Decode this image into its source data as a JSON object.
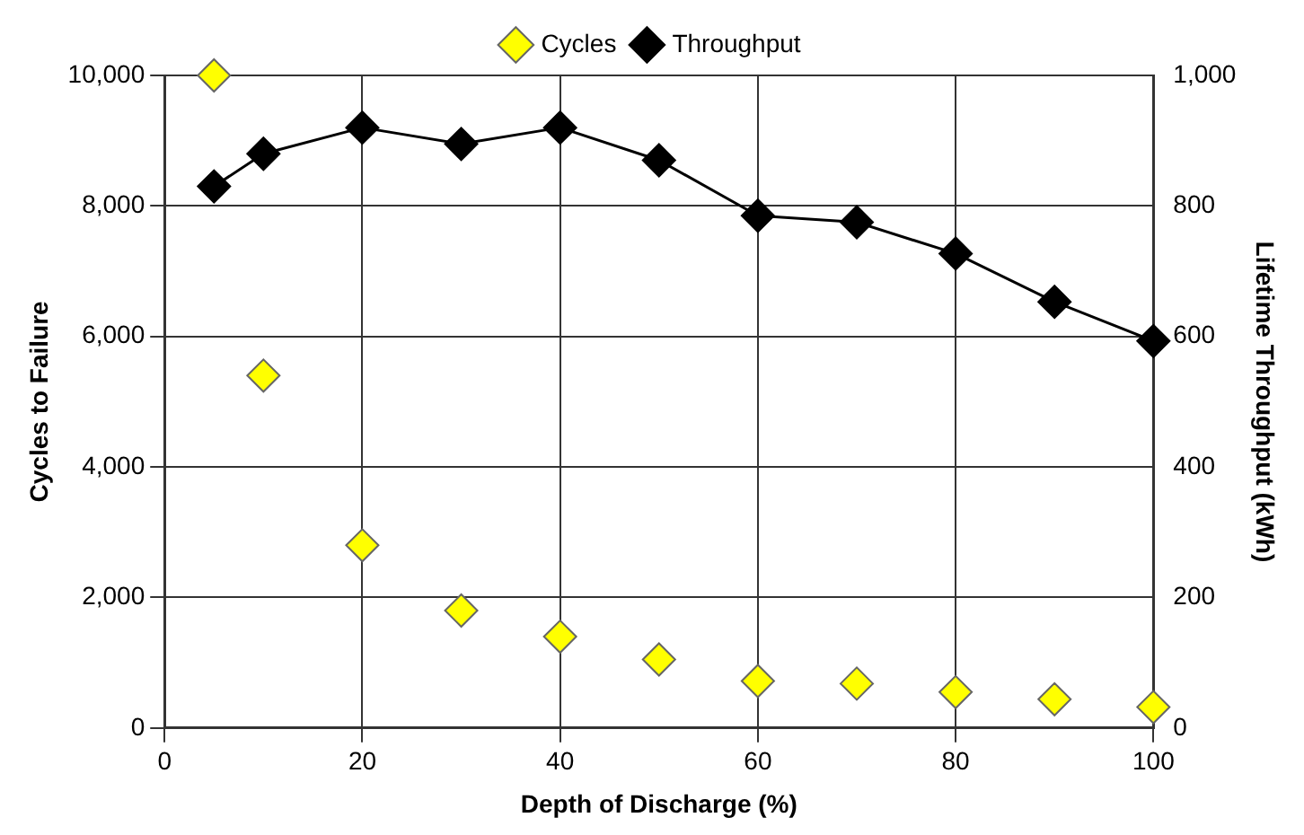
{
  "chart_data": {
    "type": "scatter",
    "xlabel": "Depth of Discharge (%)",
    "ylabel": "Cycles to Failure",
    "y2label": "Lifetime Throughput (kWh)",
    "x": [
      5,
      10,
      20,
      30,
      40,
      50,
      60,
      70,
      80,
      90,
      100
    ],
    "series": [
      {
        "name": "Cycles",
        "color": "#ffff00",
        "values": [
          10000,
          5400,
          2800,
          1800,
          1400,
          1050,
          720,
          680,
          550,
          440,
          320
        ]
      },
      {
        "name": "Throughput",
        "type": "line",
        "axis": "y2",
        "color": "#000000",
        "values": [
          830,
          880,
          920,
          895,
          920,
          870,
          785,
          775,
          727,
          653,
          593
        ]
      }
    ],
    "xlim": [
      0,
      100
    ],
    "xticks": [
      0,
      20,
      40,
      60,
      80,
      100
    ],
    "ylim": [
      0,
      10000
    ],
    "yticks": [
      {
        "value": 0,
        "label": "0"
      },
      {
        "value": 2000,
        "label": "2,000"
      },
      {
        "value": 4000,
        "label": "4,000"
      },
      {
        "value": 6000,
        "label": "6,000"
      },
      {
        "value": 8000,
        "label": "8,000"
      },
      {
        "value": 10000,
        "label": "10,000"
      }
    ],
    "y2lim": [
      0,
      1000
    ],
    "y2ticks": [
      {
        "value": 0,
        "label": "0"
      },
      {
        "value": 200,
        "label": "200"
      },
      {
        "value": 400,
        "label": "400"
      },
      {
        "value": 600,
        "label": "600"
      },
      {
        "value": 800,
        "label": "800"
      },
      {
        "value": 1000,
        "label": "1,000"
      }
    ],
    "grid": true,
    "legend": "top",
    "marker": "diamond"
  }
}
